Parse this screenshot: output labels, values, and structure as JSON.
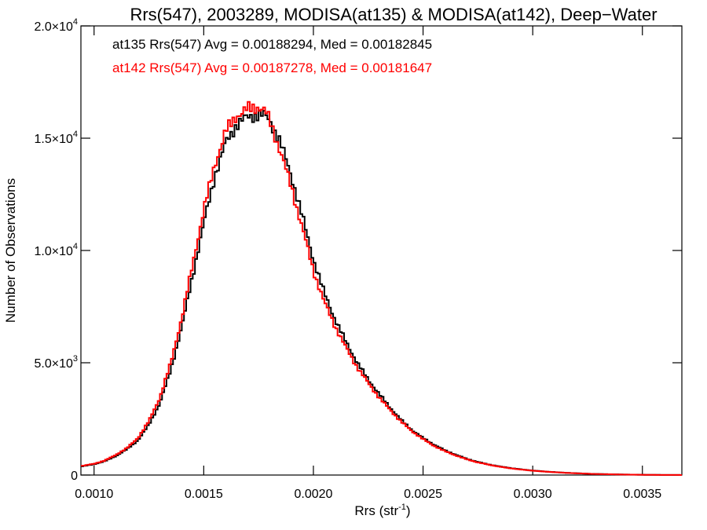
{
  "chart_data": {
    "type": "line",
    "title": "Rrs(547), 2003289, MODISA(at135) & MODISA(at142), Deep−Water",
    "xlabel": "Rrs (str",
    "xlabel_sup": "-1",
    "xlabel_close": ")",
    "ylabel": "Number of Observations",
    "xlim": [
      0.00094,
      0.00368
    ],
    "ylim": [
      0,
      20000
    ],
    "grid": false,
    "x_ticks": [
      {
        "value": 0.001,
        "label": "0.0010"
      },
      {
        "value": 0.0015,
        "label": "0.0015"
      },
      {
        "value": 0.002,
        "label": "0.0020"
      },
      {
        "value": 0.0025,
        "label": "0.0025"
      },
      {
        "value": 0.003,
        "label": "0.0030"
      },
      {
        "value": 0.0035,
        "label": "0.0035"
      }
    ],
    "y_ticks": [
      {
        "value": 0,
        "mantissa": "0",
        "exponent": ""
      },
      {
        "value": 5000,
        "mantissa": "5.0×10",
        "exponent": "3"
      },
      {
        "value": 10000,
        "mantissa": "1.0×10",
        "exponent": "4"
      },
      {
        "value": 15000,
        "mantissa": "1.5×10",
        "exponent": "4"
      },
      {
        "value": 20000,
        "mantissa": "2.0×10",
        "exponent": "4"
      }
    ],
    "annotations": [
      {
        "text": "at135 Rrs(547) Avg = 0.00188294, Med = 0.00182845",
        "color": "#000000"
      },
      {
        "text": "at142 Rrs(547) Avg = 0.00187278, Med = 0.00181647",
        "color": "#ff0000"
      }
    ],
    "series": [
      {
        "color": "#000000",
        "x": [
          0.00094,
          0.001,
          0.00105,
          0.0011,
          0.00115,
          0.0012,
          0.00125,
          0.0013,
          0.00135,
          0.0014,
          0.00145,
          0.0015,
          0.00155,
          0.0016,
          0.00165,
          0.0017,
          0.00175,
          0.00178,
          0.0018,
          0.00185,
          0.0019,
          0.00195,
          0.002,
          0.00205,
          0.0021,
          0.00215,
          0.0022,
          0.00225,
          0.0023,
          0.00235,
          0.0024,
          0.00245,
          0.0025,
          0.00255,
          0.0026,
          0.00265,
          0.0027,
          0.00275,
          0.0028,
          0.00285,
          0.0029,
          0.00295,
          0.003,
          0.00305,
          0.0031,
          0.00315,
          0.0032,
          0.00325,
          0.0033,
          0.00335,
          0.0034,
          0.00345,
          0.0035,
          0.00355,
          0.0036,
          0.00365,
          0.00368
        ],
        "y": [
          380,
          480,
          620,
          850,
          1150,
          1550,
          2250,
          3200,
          4700,
          6600,
          8900,
          11200,
          13300,
          14800,
          15600,
          15950,
          16050,
          16000,
          15800,
          14800,
          13300,
          11500,
          9600,
          8100,
          6900,
          5900,
          5000,
          4250,
          3600,
          3000,
          2450,
          2000,
          1650,
          1350,
          1100,
          900,
          720,
          580,
          470,
          380,
          310,
          250,
          200,
          160,
          130,
          100,
          80,
          60,
          45,
          35,
          25,
          18,
          12,
          8,
          5,
          3,
          2
        ]
      },
      {
        "color": "#ff0000",
        "x": [
          0.00094,
          0.001,
          0.00105,
          0.0011,
          0.00115,
          0.0012,
          0.00125,
          0.0013,
          0.00135,
          0.0014,
          0.00145,
          0.0015,
          0.00155,
          0.0016,
          0.00165,
          0.0017,
          0.00175,
          0.00178,
          0.0018,
          0.00185,
          0.0019,
          0.00195,
          0.002,
          0.00205,
          0.0021,
          0.00215,
          0.0022,
          0.00225,
          0.0023,
          0.00235,
          0.0024,
          0.00245,
          0.0025,
          0.00255,
          0.0026,
          0.00265,
          0.0027,
          0.00275,
          0.0028,
          0.00285,
          0.0029,
          0.00295,
          0.003,
          0.00305,
          0.0031,
          0.00315,
          0.0032,
          0.00325,
          0.0033,
          0.00335,
          0.0034,
          0.00345,
          0.0035,
          0.00355,
          0.0036,
          0.00365,
          0.00368
        ],
        "y": [
          400,
          500,
          650,
          900,
          1200,
          1650,
          2400,
          3450,
          5000,
          7000,
          9400,
          11800,
          13800,
          15300,
          16000,
          16300,
          16400,
          16200,
          15800,
          14400,
          12800,
          11000,
          9100,
          7700,
          6600,
          5650,
          4800,
          4100,
          3450,
          2900,
          2380,
          1950,
          1600,
          1300,
          1060,
          870,
          700,
          560,
          460,
          370,
          300,
          240,
          195,
          155,
          125,
          98,
          78,
          58,
          44,
          34,
          24,
          17,
          11,
          7,
          5,
          3,
          2
        ]
      }
    ]
  }
}
